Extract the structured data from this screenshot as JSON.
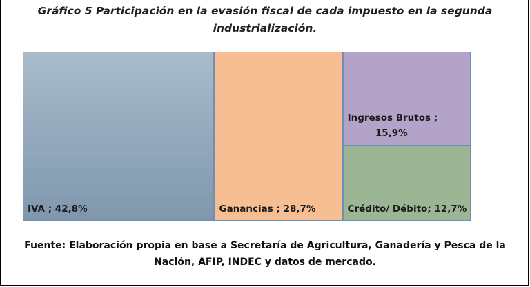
{
  "chart_data": {
    "type": "treemap",
    "title": "Gráfico 5 Participación en la evasión fiscal de cada impuesto en la segunda industrialización.",
    "items": [
      {
        "name": "IVA",
        "value": 42.8,
        "label": "IVA ; 42,8%",
        "color": "#8ea4b8"
      },
      {
        "name": "Ganancias",
        "value": 28.7,
        "label": "Ganancias ; 28,7%",
        "color": "#f6be92"
      },
      {
        "name": "Ingresos Brutos",
        "value": 15.9,
        "label": "Ingresos Brutos ;\n15,9%",
        "color": "#b3a3c9"
      },
      {
        "name": "Crédito/ Débito",
        "value": 12.7,
        "label": "Crédito/ Débito; 12,7%",
        "color": "#9bb595"
      }
    ]
  },
  "source": "Fuente: Elaboración propia en base a Secretaría de Agricultura, Ganadería y Pesca de la Nación, AFIP, INDEC y datos de mercado."
}
